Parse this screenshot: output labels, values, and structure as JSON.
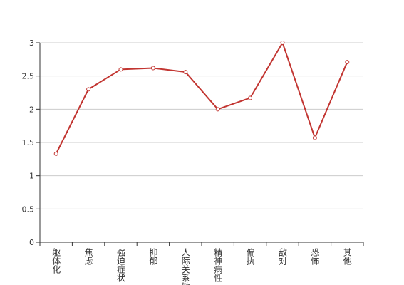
{
  "chart_data": {
    "type": "line",
    "categories": [
      "躯体化",
      "焦虑",
      "强迫症状",
      "抑郁",
      "人际关系敏感",
      "精神病性",
      "偏执",
      "敌对",
      "恐怖",
      "其他"
    ],
    "series": [
      {
        "color": "#c23531",
        "values": [
          1.33,
          2.3,
          2.6,
          2.62,
          2.56,
          2.0,
          2.17,
          3.0,
          1.57,
          2.71
        ]
      }
    ],
    "ylim": [
      0,
      3
    ],
    "yticks": [
      0,
      0.5,
      1,
      1.5,
      2,
      2.5,
      3
    ],
    "grid": true
  }
}
